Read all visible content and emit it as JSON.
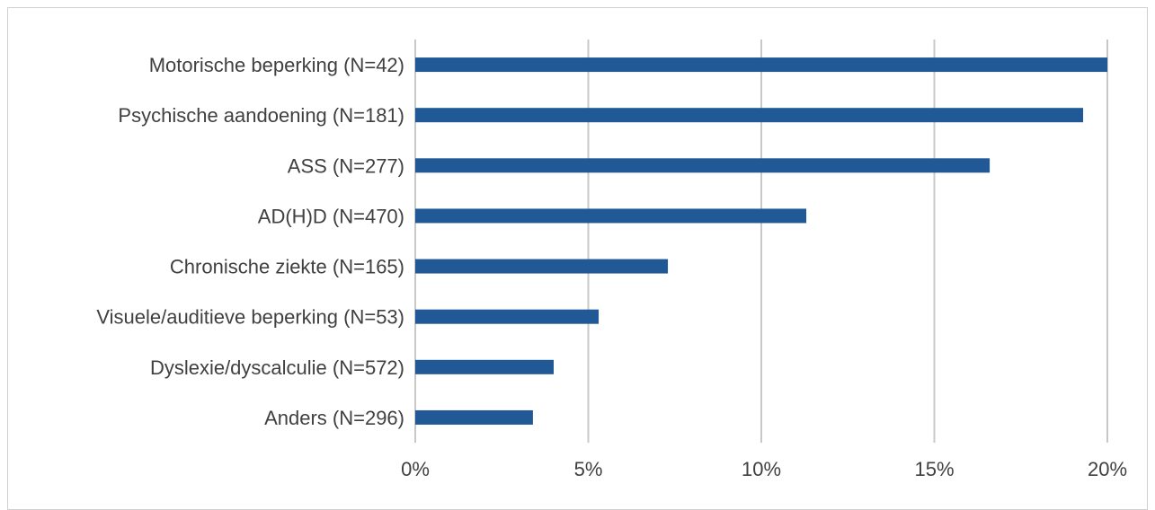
{
  "chart_data": {
    "type": "bar",
    "orientation": "horizontal",
    "categories": [
      "Motorische beperking (N=42)",
      "Psychische aandoening (N=181)",
      "ASS (N=277)",
      "AD(H)D (N=470)",
      "Chronische ziekte (N=165)",
      "Visuele/auditieve beperking (N=53)",
      "Dyslexie/dyscalculie (N=572)",
      "Anders (N=296)"
    ],
    "values": [
      20.0,
      19.3,
      16.6,
      11.3,
      7.3,
      5.3,
      4.0,
      3.4
    ],
    "x_ticks": [
      "0%",
      "5%",
      "10%",
      "15%",
      "20%"
    ],
    "xlim": [
      0,
      20
    ],
    "grid": "vertical",
    "title": "",
    "xlabel": "",
    "ylabel": "",
    "bar_color": "#215896",
    "grid_color": "#c8c8c8",
    "text_color": "#404040"
  }
}
